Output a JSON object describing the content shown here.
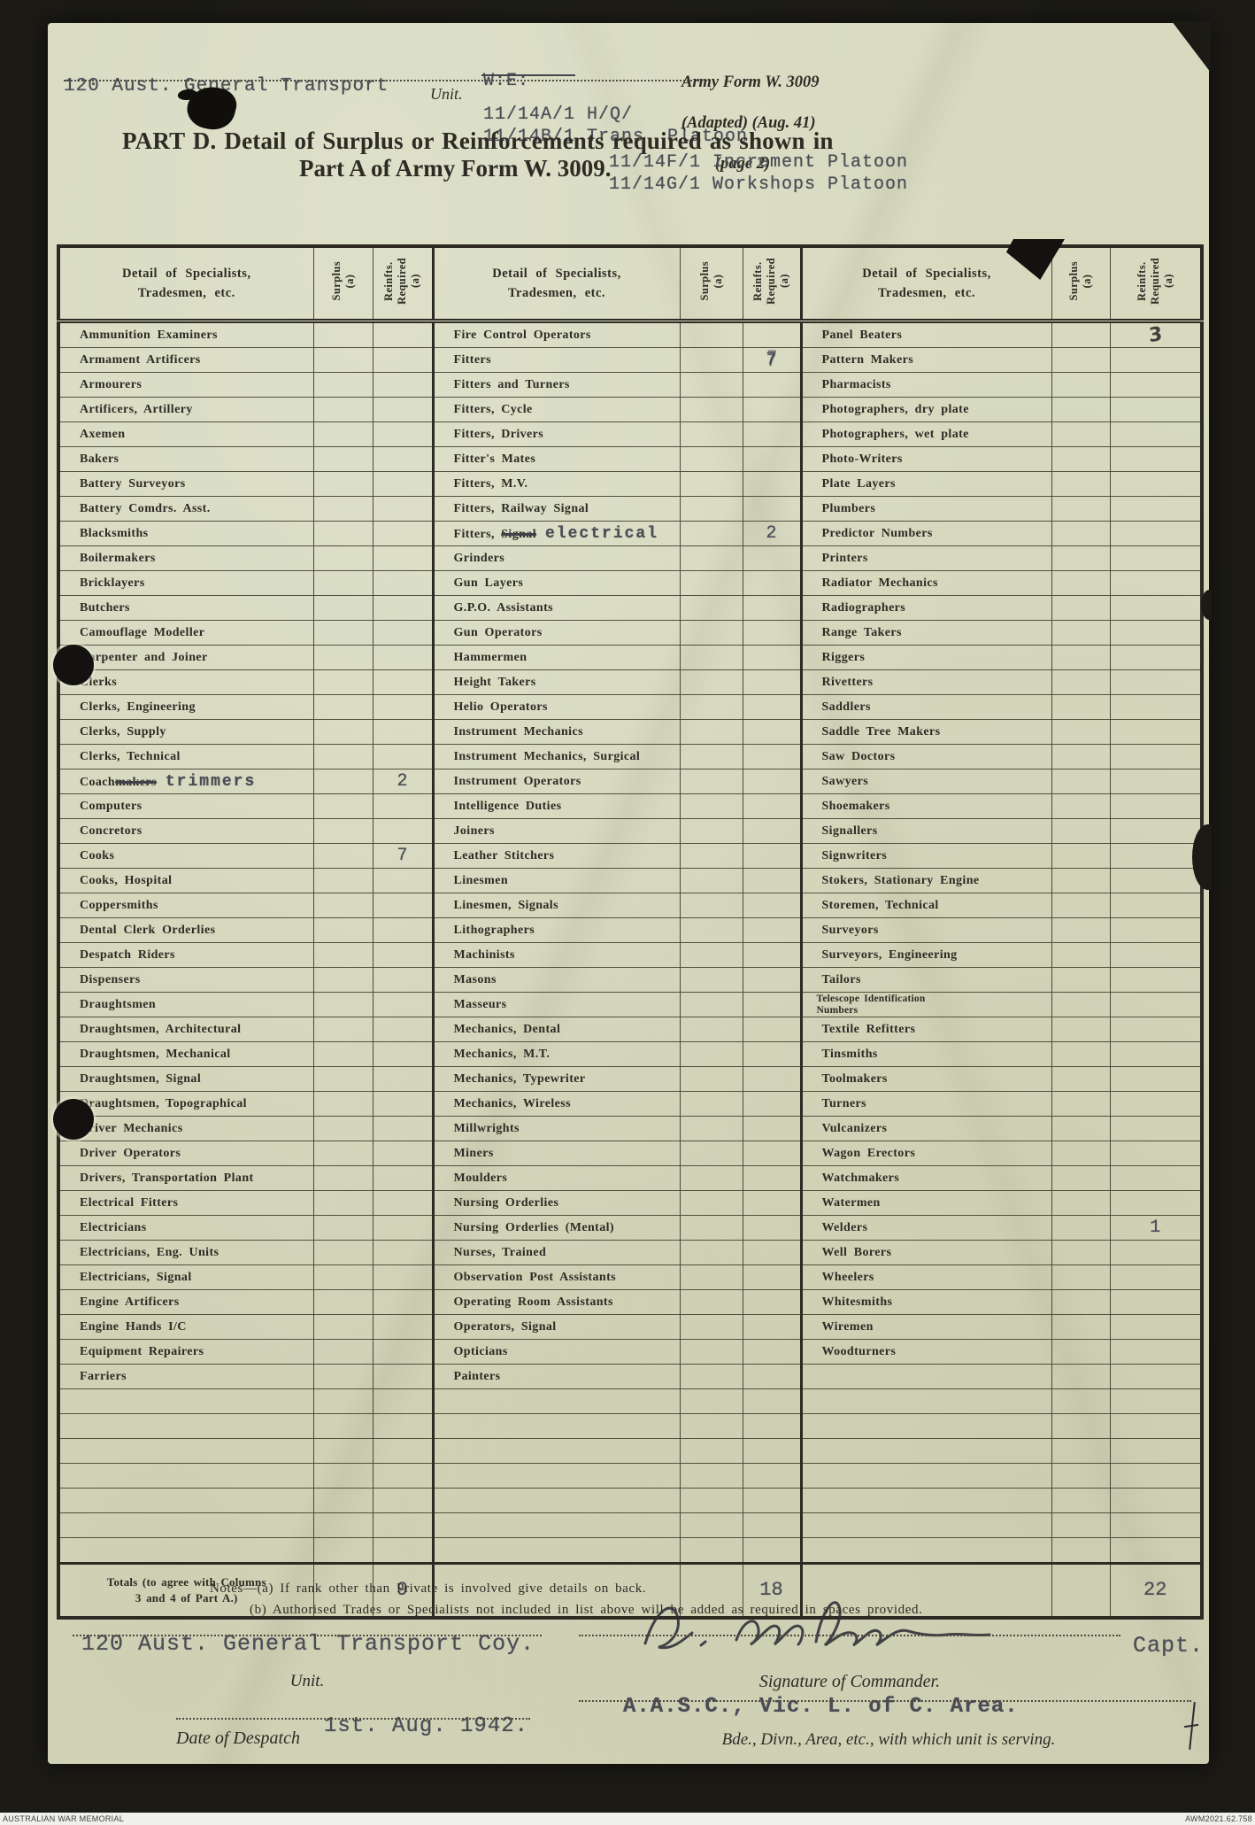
{
  "header": {
    "unit_value": "120 Aust. General Transport",
    "unit_label": "Unit.",
    "we_line1": "W:E:",
    "we_line2": "11/14A/1  H/Q/",
    "we_line3": "11/14B/1 Trans. Platoon.",
    "form_line1": "Army Form W. 3009",
    "form_line2": "(Adapted)  (Aug. 41)",
    "form_line3": "(page 2)",
    "title_line1": "PART D.   Detail of Surplus or Reinforcements required as shown in",
    "title_line2": "Part A of Army Form W. 3009.",
    "platoon_line1": "11/14F/1 Increment Platoon",
    "platoon_line2": "11/14G/1 Workshops Platoon"
  },
  "table": {
    "header": {
      "detail": "Detail of Specialists,\nTradesmen, etc.",
      "surplus": "Surplus\n(a)",
      "reinfts": "Reinfts.\nRequired\n(a)"
    },
    "rows_per_column": 43,
    "blank_row_count": 7,
    "groups": [
      {
        "rows": [
          "Ammunition Examiners",
          "Armament Artificers",
          "Armourers",
          "Artificers, Artillery",
          "Axemen",
          "Bakers",
          "Battery Surveyors",
          "Battery Comdrs. Asst.",
          "Blacksmiths",
          "Boilermakers",
          "Bricklayers",
          "Butchers",
          "Camouflage Modeller",
          "Carpenter and Joiner",
          "Clerks",
          "Clerks, Engineering",
          "Clerks, Supply",
          "Clerks, Technical",
          {
            "keep": "Coach",
            "strike": "makers",
            "typed": "trimmers",
            "r": "2"
          },
          "Computers",
          "Concretors",
          {
            "n": "Cooks",
            "r": "7"
          },
          "Cooks, Hospital",
          "Coppersmiths",
          "Dental Clerk Orderlies",
          "Despatch Riders",
          "Dispensers",
          "Draughtsmen",
          "Draughtsmen, Architectural",
          "Draughtsmen, Mechanical",
          "Draughtsmen, Signal",
          "Draughtsmen, Topographical",
          "Driver Mechanics",
          "Driver Operators",
          "Drivers, Transportation Plant",
          "Electrical Fitters",
          "Electricians",
          "Electricians, Eng. Units",
          "Electricians, Signal",
          "Engine Artificers",
          "Engine Hands I/C",
          "Equipment Repairers",
          "Farriers"
        ]
      },
      {
        "rows": [
          "Fire Control Operators",
          {
            "n": "Fitters",
            "r": "7",
            "smudge": true
          },
          "Fitters and Turners",
          "Fitters, Cycle",
          "Fitters, Drivers",
          "Fitter's Mates",
          "Fitters, M.V.",
          "Fitters, Railway Signal",
          {
            "keep": "Fitters, ",
            "strike": "Signal",
            "typed": "electrical",
            "r": "2"
          },
          "Grinders",
          "Gun Layers",
          "G.P.O. Assistants",
          "Gun Operators",
          "Hammermen",
          "Height Takers",
          "Helio Operators",
          "Instrument Mechanics",
          "Instrument Mechanics, Surgical",
          "Instrument Operators",
          "Intelligence Duties",
          "Joiners",
          "Leather Stitchers",
          "Linesmen",
          "Linesmen, Signals",
          "Lithographers",
          "Machinists",
          "Masons",
          "Masseurs",
          "Mechanics, Dental",
          "Mechanics, M.T.",
          "Mechanics, Typewriter",
          "Mechanics, Wireless",
          "Millwrights",
          "Miners",
          "Moulders",
          "Nursing Orderlies",
          "Nursing Orderlies (Mental)",
          "Nurses, Trained",
          "Observation Post Assistants",
          "Operating Room Assistants",
          "Operators, Signal",
          "Opticians",
          "Painters"
        ]
      },
      {
        "rows": [
          {
            "n": "Panel Beaters",
            "r": "3",
            "hand": true
          },
          "Pattern Makers",
          "Pharmacists",
          "Photographers, dry plate",
          "Photographers, wet plate",
          "Photo-Writers",
          "Plate Layers",
          "Plumbers",
          "Predictor Numbers",
          "Printers",
          "Radiator Mechanics",
          "Radiographers",
          "Range Takers",
          "Riggers",
          "Rivetters",
          "Saddlers",
          "Saddle Tree Makers",
          "Saw Doctors",
          "Sawyers",
          "Shoemakers",
          "Signallers",
          "Signwriters",
          "Stokers, Stationary Engine",
          "Storemen, Technical",
          "Surveyors",
          "Surveyors, Engineering",
          "Tailors",
          {
            "n": "Telescope Identification\nNumbers",
            "small": true
          },
          "Textile Refitters",
          "Tinsmiths",
          "Toolmakers",
          "Turners",
          "Vulcanizers",
          "Wagon Erectors",
          "Watchmakers",
          "Watermen",
          {
            "n": "Welders",
            "r": "1"
          },
          "Well Borers",
          "Wheelers",
          "Whitesmiths",
          "Wiremen",
          "Woodturners",
          ""
        ]
      }
    ],
    "totals": {
      "label": "Totals (to agree with Columns\n3 and 4 of Part A.)",
      "values": [
        {
          "surplus": "",
          "reinfts": "9"
        },
        {
          "surplus": "",
          "reinfts": "18"
        },
        {
          "surplus": "",
          "reinfts": "22"
        }
      ]
    }
  },
  "notes": {
    "line_a": "Notes—(a) If rank other than Private is involved give details on back.",
    "line_b": "(b) Authorised Trades or Specialists not included in list above will be added as required in spaces provided."
  },
  "footer": {
    "unit_value": "120 Aust. General Transport Coy.",
    "unit_label": "Unit.",
    "rank": "Capt.",
    "sig_label": "Signature of Commander.",
    "area_value": "A.A.S.C., Vic. L. of C. Area.",
    "area_label": "Bde., Divn., Area, etc., with which unit is serving.",
    "date_label": "Date of Despatch",
    "date_value": "1st. Aug. 1942."
  },
  "caption": {
    "left": "AUSTRALIAN WAR MEMORIAL",
    "right": "AWM2021.62.758"
  }
}
